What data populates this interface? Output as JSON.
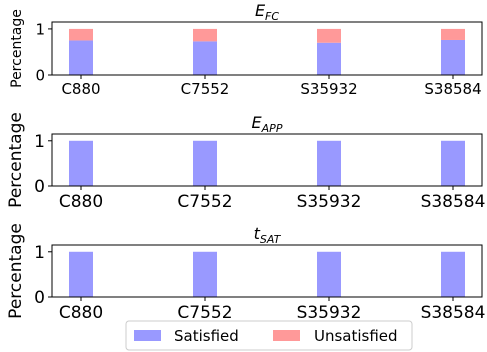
{
  "colors": {
    "satisfied": "#9999ff",
    "unsatisfied": "#ff9999",
    "axis": "#000000"
  },
  "legend": {
    "placement": "bottom-center",
    "items": [
      {
        "label": "Satisfied",
        "color": "#9999ff"
      },
      {
        "label": "Unsatisfied",
        "color": "#ff9999"
      }
    ]
  },
  "chart_data": [
    {
      "type": "bar",
      "stacked": true,
      "title_base": "E",
      "title_sub": "FC",
      "ylabel": "Percentage",
      "ylim": [
        0,
        1.15
      ],
      "yticks": [
        "0",
        "1"
      ],
      "categories": [
        "C880",
        "C7552",
        "S35932",
        "S38584"
      ],
      "series": [
        {
          "name": "Satisfied",
          "values": [
            0.75,
            0.73,
            0.7,
            0.76
          ]
        },
        {
          "name": "Unsatisfied",
          "values": [
            0.25,
            0.27,
            0.3,
            0.24
          ]
        }
      ],
      "grid": false
    },
    {
      "type": "bar",
      "stacked": true,
      "title_base": "E",
      "title_sub": "APP",
      "ylabel": "Percentage",
      "ylim": [
        0,
        1.15
      ],
      "yticks": [
        "0",
        "1"
      ],
      "categories": [
        "C880",
        "C7552",
        "S35932",
        "S38584"
      ],
      "series": [
        {
          "name": "Satisfied",
          "values": [
            1.0,
            1.0,
            1.0,
            1.0
          ]
        },
        {
          "name": "Unsatisfied",
          "values": [
            0.0,
            0.0,
            0.0,
            0.0
          ]
        }
      ],
      "grid": false
    },
    {
      "type": "bar",
      "stacked": true,
      "title_base": "t",
      "title_sub": "SAT",
      "ylabel": "Percentage",
      "ylim": [
        0,
        1.15
      ],
      "yticks": [
        "0",
        "1"
      ],
      "categories": [
        "C880",
        "C7552",
        "S35932",
        "S38584"
      ],
      "series": [
        {
          "name": "Satisfied",
          "values": [
            1.0,
            1.0,
            1.0,
            1.0
          ]
        },
        {
          "name": "Unsatisfied",
          "values": [
            0.0,
            0.0,
            0.0,
            0.0
          ]
        }
      ],
      "grid": false
    }
  ]
}
